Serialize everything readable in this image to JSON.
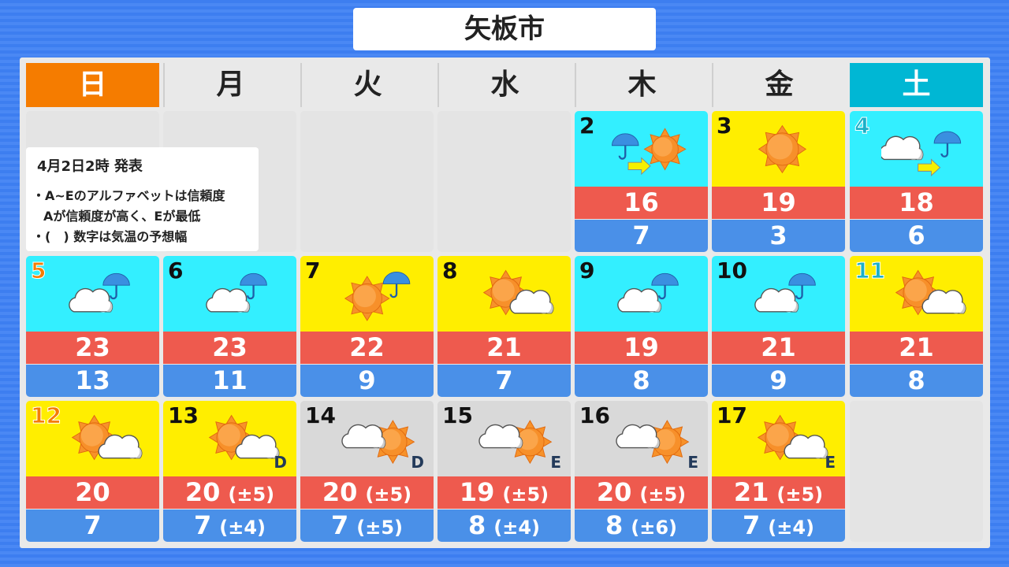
{
  "title": "矢板市",
  "weekdays": [
    "日",
    "月",
    "火",
    "水",
    "木",
    "金",
    "土"
  ],
  "colors": {
    "sunday": "#f57c00",
    "saturday": "#00b7d4",
    "rain_bg": "#33efff",
    "sun_bg": "#ffee00",
    "cloud_bg": "#d9d9d9",
    "high": "#ee5a4e",
    "low": "#4a90e8"
  },
  "info": {
    "issued": "4月2日2時 発表",
    "note1": "・A~Eのアルファベットは信頼度",
    "note2": "Aが信頼度が高く、Eが最低",
    "note3": "・(　) 数字は気温の予想幅"
  },
  "days": [
    {
      "date": "2",
      "weather": "rain-then-sun",
      "high": "16",
      "low": "7"
    },
    {
      "date": "3",
      "weather": "sun",
      "high": "19",
      "low": "3"
    },
    {
      "date": "4",
      "weather": "cloud-then-rain",
      "high": "18",
      "low": "6"
    },
    {
      "date": "5",
      "weather": "cloud-rain",
      "high": "23",
      "low": "13"
    },
    {
      "date": "6",
      "weather": "cloud-rain",
      "high": "23",
      "low": "11"
    },
    {
      "date": "7",
      "weather": "sun-rain",
      "high": "22",
      "low": "9"
    },
    {
      "date": "8",
      "weather": "sun-cloud",
      "high": "21",
      "low": "7"
    },
    {
      "date": "9",
      "weather": "cloud-rain",
      "high": "19",
      "low": "8"
    },
    {
      "date": "10",
      "weather": "cloud-rain",
      "high": "21",
      "low": "9"
    },
    {
      "date": "11",
      "weather": "sun-cloud",
      "high": "21",
      "low": "8"
    },
    {
      "date": "12",
      "weather": "sun-cloud",
      "high": "20",
      "low": "7"
    },
    {
      "date": "13",
      "weather": "sun-cloud",
      "high": "20",
      "high_range": "(±5)",
      "low": "7",
      "low_range": "(±4)",
      "reliability": "D"
    },
    {
      "date": "14",
      "weather": "cloud-sun",
      "high": "20",
      "high_range": "(±5)",
      "low": "7",
      "low_range": "(±5)",
      "reliability": "D"
    },
    {
      "date": "15",
      "weather": "cloud-sun",
      "high": "19",
      "high_range": "(±5)",
      "low": "8",
      "low_range": "(±4)",
      "reliability": "E"
    },
    {
      "date": "16",
      "weather": "cloud-sun",
      "high": "20",
      "high_range": "(±5)",
      "low": "8",
      "low_range": "(±6)",
      "reliability": "E"
    },
    {
      "date": "17",
      "weather": "sun-cloud",
      "high": "21",
      "high_range": "(±5)",
      "low": "7",
      "low_range": "(±4)",
      "reliability": "E"
    }
  ]
}
